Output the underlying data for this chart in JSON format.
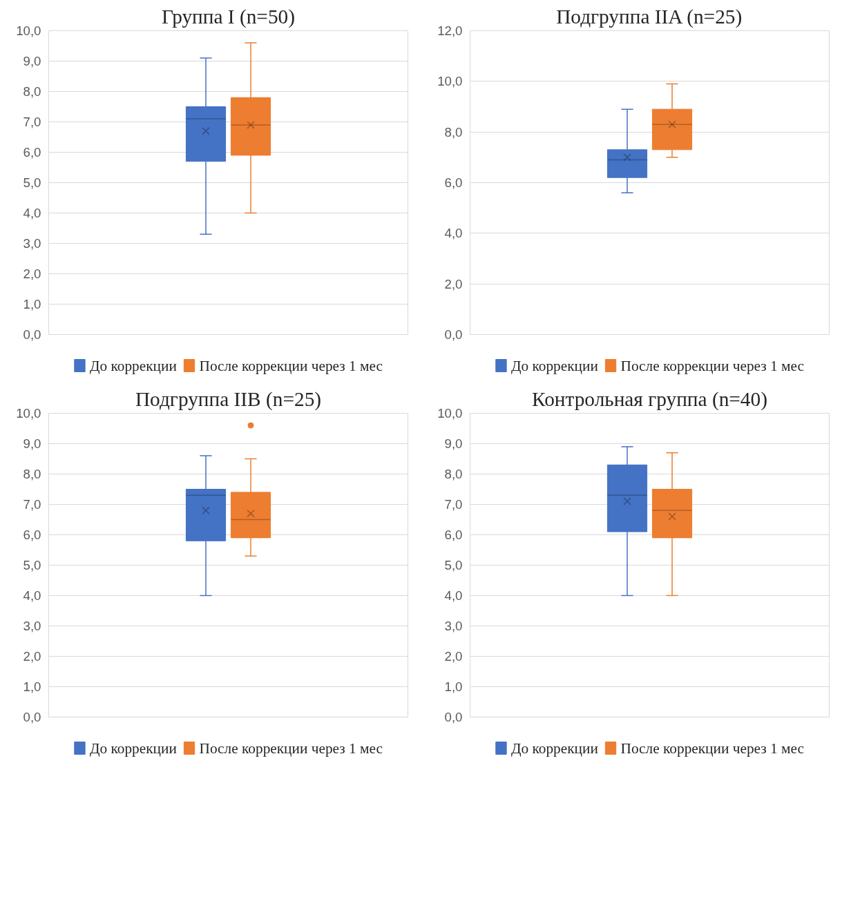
{
  "chart_data": [
    {
      "type": "box",
      "title": "Группа I (n=50)",
      "categories": [
        null
      ],
      "ylim": [
        0,
        10
      ],
      "yticks": [
        {
          "value": 0,
          "label": "0,0"
        },
        {
          "value": 1,
          "label": "1,0"
        },
        {
          "value": 2,
          "label": "2,0"
        },
        {
          "value": 3,
          "label": "3,0"
        },
        {
          "value": 4,
          "label": "4,0"
        },
        {
          "value": 5,
          "label": "5,0"
        },
        {
          "value": 6,
          "label": "6,0"
        },
        {
          "value": 7,
          "label": "7,0"
        },
        {
          "value": 8,
          "label": "8,0"
        },
        {
          "value": 9,
          "label": "9,0"
        },
        {
          "value": 10,
          "label": "10,0"
        }
      ],
      "grid": "y",
      "legend": "bottom",
      "series": [
        {
          "name": "До коррекции",
          "color": "#4472c4",
          "boxes": [
            {
              "low": 3.3,
              "q1": 5.7,
              "median": 7.1,
              "q3": 7.5,
              "high": 9.1,
              "mean": 6.7
            }
          ]
        },
        {
          "name": "После коррекции через 1 мес",
          "color": "#ed7d31",
          "boxes": [
            {
              "low": 4.0,
              "q1": 5.9,
              "median": 6.9,
              "q3": 7.8,
              "high": 9.6,
              "mean": 6.9
            }
          ]
        }
      ]
    },
    {
      "type": "box",
      "title": "Подгруппа IIA (n=25)",
      "categories": [
        null
      ],
      "ylim": [
        0,
        12
      ],
      "yticks": [
        {
          "value": 0,
          "label": "0,0"
        },
        {
          "value": 2,
          "label": "2,0"
        },
        {
          "value": 4,
          "label": "4,0"
        },
        {
          "value": 6,
          "label": "6,0"
        },
        {
          "value": 8,
          "label": "8,0"
        },
        {
          "value": 10,
          "label": "10,0"
        },
        {
          "value": 12,
          "label": "12,0"
        }
      ],
      "grid": "y",
      "legend": "bottom",
      "series": [
        {
          "name": "До коррекции",
          "color": "#4472c4",
          "boxes": [
            {
              "low": 5.6,
              "q1": 6.2,
              "median": 6.9,
              "q3": 7.3,
              "high": 8.9,
              "mean": 7.0
            }
          ]
        },
        {
          "name": "После коррекции через 1 мес",
          "color": "#ed7d31",
          "boxes": [
            {
              "low": 7.0,
              "q1": 7.3,
              "median": 8.3,
              "q3": 8.9,
              "high": 9.9,
              "mean": 8.3
            }
          ]
        }
      ]
    },
    {
      "type": "box",
      "title": "Подгруппа IIB (n=25)",
      "categories": [
        null
      ],
      "ylim": [
        0,
        10
      ],
      "yticks": [
        {
          "value": 0,
          "label": "0,0"
        },
        {
          "value": 1,
          "label": "1,0"
        },
        {
          "value": 2,
          "label": "2,0"
        },
        {
          "value": 3,
          "label": "3,0"
        },
        {
          "value": 4,
          "label": "4,0"
        },
        {
          "value": 5,
          "label": "5,0"
        },
        {
          "value": 6,
          "label": "6,0"
        },
        {
          "value": 7,
          "label": "7,0"
        },
        {
          "value": 8,
          "label": "8,0"
        },
        {
          "value": 9,
          "label": "9,0"
        },
        {
          "value": 10,
          "label": "10,0"
        }
      ],
      "grid": "y",
      "legend": "bottom",
      "series": [
        {
          "name": "До коррекции",
          "color": "#4472c4",
          "boxes": [
            {
              "low": 4.0,
              "q1": 5.8,
              "median": 7.3,
              "q3": 7.5,
              "high": 8.6,
              "mean": 6.8
            }
          ]
        },
        {
          "name": "После коррекции через 1 мес",
          "color": "#ed7d31",
          "boxes": [
            {
              "low": 5.3,
              "q1": 5.9,
              "median": 6.5,
              "q3": 7.4,
              "high": 8.5,
              "mean": 6.7,
              "outliers": [
                9.6
              ]
            }
          ]
        }
      ]
    },
    {
      "type": "box",
      "title": "Контрольная группа (n=40)",
      "categories": [
        null
      ],
      "ylim": [
        0,
        10
      ],
      "yticks": [
        {
          "value": 0,
          "label": "0,0"
        },
        {
          "value": 1,
          "label": "1,0"
        },
        {
          "value": 2,
          "label": "2,0"
        },
        {
          "value": 3,
          "label": "3,0"
        },
        {
          "value": 4,
          "label": "4,0"
        },
        {
          "value": 5,
          "label": "5,0"
        },
        {
          "value": 6,
          "label": "6,0"
        },
        {
          "value": 7,
          "label": "7,0"
        },
        {
          "value": 8,
          "label": "8,0"
        },
        {
          "value": 9,
          "label": "9,0"
        },
        {
          "value": 10,
          "label": "10,0"
        }
      ],
      "grid": "y",
      "legend": "bottom",
      "series": [
        {
          "name": "До коррекции",
          "color": "#4472c4",
          "boxes": [
            {
              "low": 4.0,
              "q1": 6.1,
              "median": 7.3,
              "q3": 8.3,
              "high": 8.9,
              "mean": 7.1
            }
          ]
        },
        {
          "name": "После коррекции через 1 мес",
          "color": "#ed7d31",
          "boxes": [
            {
              "low": 4.0,
              "q1": 5.9,
              "median": 6.8,
              "q3": 7.5,
              "high": 8.7,
              "mean": 6.6
            }
          ]
        }
      ]
    }
  ]
}
